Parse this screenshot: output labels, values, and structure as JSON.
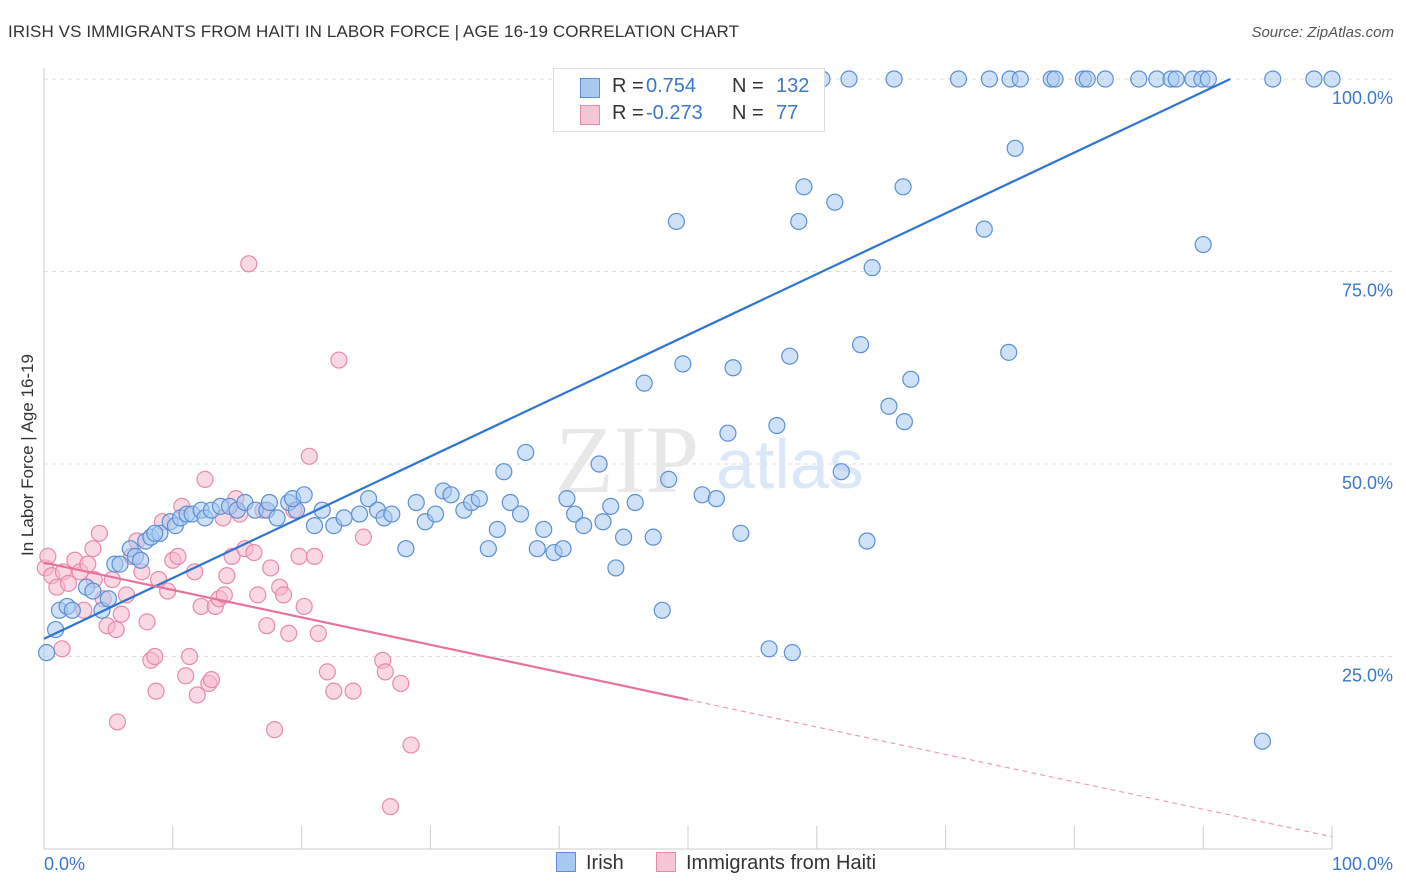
{
  "title": "IRISH VS IMMIGRANTS FROM HAITI IN LABOR FORCE | AGE 16-19 CORRELATION CHART",
  "source": "Source: ZipAtlas.com",
  "watermark": {
    "zip": "ZIP",
    "atlas": "atlas"
  },
  "legend": {
    "irish": {
      "r_label": "R =",
      "r_value": "0.754",
      "n_label": "N =",
      "n_value": "132"
    },
    "haiti": {
      "r_label": "R =",
      "r_value": "-0.273",
      "n_label": "N =",
      "n_value": "77"
    }
  },
  "colors": {
    "irish_fill": "#a8c8f0",
    "irish_stroke": "#5b8fd4",
    "irish_line": "#2e74d0",
    "haiti_fill": "#f5b8cc",
    "haiti_stroke": "#e88aa8",
    "haiti_line": "#e8739a",
    "value_text": "#3a78c9",
    "grid": "#dddddd"
  },
  "chart_data": {
    "type": "scatter",
    "ylabel": "In Labor Force | Age 16-19",
    "xlim": [
      0,
      100
    ],
    "ylim": [
      0,
      100
    ],
    "x_tick_labels": {
      "min": "0.0%",
      "max": "100.0%"
    },
    "y_tick_labels": [
      "25.0%",
      "50.0%",
      "75.0%",
      "100.0%"
    ],
    "y_ticks": [
      25,
      50,
      75,
      100
    ],
    "series": [
      {
        "name": "Irish",
        "r": 0.754,
        "n": 132,
        "trend": {
          "x0": 0,
          "y0": 27.3,
          "x1": 92.1,
          "y1": 100
        },
        "points": [
          [
            0.2,
            25.5
          ],
          [
            0.9,
            28.5
          ],
          [
            1.2,
            31
          ],
          [
            1.8,
            31.5
          ],
          [
            2.2,
            31
          ],
          [
            3.3,
            34
          ],
          [
            3.8,
            33.5
          ],
          [
            4.5,
            31
          ],
          [
            5.0,
            32.5
          ],
          [
            5.5,
            37
          ],
          [
            5.9,
            37
          ],
          [
            6.7,
            39
          ],
          [
            7.1,
            38
          ],
          [
            7.5,
            37.5
          ],
          [
            7.9,
            40
          ],
          [
            8.3,
            40.5
          ],
          [
            9.0,
            41
          ],
          [
            8.6,
            41
          ],
          [
            9.8,
            42.5
          ],
          [
            10.2,
            42
          ],
          [
            10.6,
            43
          ],
          [
            11.1,
            43.5
          ],
          [
            11.5,
            43.5
          ],
          [
            12.2,
            44
          ],
          [
            12.5,
            43
          ],
          [
            13.0,
            44
          ],
          [
            13.7,
            44.5
          ],
          [
            14.4,
            44.5
          ],
          [
            15.0,
            44
          ],
          [
            15.6,
            45
          ],
          [
            16.4,
            44
          ],
          [
            17.3,
            44
          ],
          [
            17.5,
            45
          ],
          [
            18.1,
            43
          ],
          [
            19.0,
            45
          ],
          [
            19.6,
            44
          ],
          [
            19.3,
            45.5
          ],
          [
            20.2,
            46
          ],
          [
            21.0,
            42
          ],
          [
            21.6,
            44
          ],
          [
            22.5,
            42
          ],
          [
            23.3,
            43
          ],
          [
            24.5,
            43.5
          ],
          [
            25.2,
            45.5
          ],
          [
            25.9,
            44
          ],
          [
            26.4,
            43
          ],
          [
            27.0,
            43.5
          ],
          [
            28.1,
            39
          ],
          [
            28.9,
            45
          ],
          [
            29.6,
            42.5
          ],
          [
            30.4,
            43.5
          ],
          [
            31.0,
            46.5
          ],
          [
            31.6,
            46
          ],
          [
            32.6,
            44
          ],
          [
            33.2,
            45
          ],
          [
            33.8,
            45.5
          ],
          [
            34.5,
            39
          ],
          [
            35.2,
            41.5
          ],
          [
            35.7,
            49
          ],
          [
            36.2,
            45
          ],
          [
            37.0,
            43.5
          ],
          [
            37.4,
            51.5
          ],
          [
            38.3,
            39
          ],
          [
            38.8,
            41.5
          ],
          [
            39.6,
            38.5
          ],
          [
            40.3,
            39
          ],
          [
            40.6,
            45.5
          ],
          [
            41.2,
            43.5
          ],
          [
            41.9,
            42
          ],
          [
            43.4,
            42.5
          ],
          [
            43.1,
            50
          ],
          [
            44.0,
            44.5
          ],
          [
            44.4,
            36.5
          ],
          [
            45.0,
            40.5
          ],
          [
            45.9,
            45
          ],
          [
            46.6,
            60.5
          ],
          [
            47.3,
            40.5
          ],
          [
            48.0,
            31
          ],
          [
            48.5,
            48
          ],
          [
            49.1,
            81.5
          ],
          [
            49.6,
            63
          ],
          [
            50.1,
            100
          ],
          [
            51.1,
            46
          ],
          [
            52.2,
            45.5
          ],
          [
            52.7,
            94.5
          ],
          [
            53.1,
            54
          ],
          [
            53.5,
            62.5
          ],
          [
            54.1,
            41
          ],
          [
            56.3,
            26
          ],
          [
            56.9,
            55
          ],
          [
            56.3,
            100
          ],
          [
            57.9,
            64
          ],
          [
            58.1,
            25.5
          ],
          [
            58.6,
            81.5
          ],
          [
            59.0,
            86
          ],
          [
            59.0,
            100
          ],
          [
            60.4,
            100
          ],
          [
            61.4,
            84
          ],
          [
            61.9,
            49
          ],
          [
            62.5,
            100
          ],
          [
            63.4,
            65.5
          ],
          [
            63.9,
            40
          ],
          [
            64.3,
            75.5
          ],
          [
            65.6,
            57.5
          ],
          [
            66.0,
            100
          ],
          [
            66.7,
            86
          ],
          [
            66.8,
            55.5
          ],
          [
            67.3,
            61
          ],
          [
            71.0,
            100
          ],
          [
            73.4,
            100
          ],
          [
            73.0,
            80.5
          ],
          [
            74.9,
            64.5
          ],
          [
            75.0,
            100
          ],
          [
            75.8,
            100
          ],
          [
            75.4,
            91
          ],
          [
            78.2,
            100
          ],
          [
            78.5,
            100
          ],
          [
            80.7,
            100
          ],
          [
            81.0,
            100
          ],
          [
            82.4,
            100
          ],
          [
            85.0,
            100
          ],
          [
            86.4,
            100
          ],
          [
            87.5,
            100
          ],
          [
            87.9,
            100
          ],
          [
            89.2,
            100
          ],
          [
            89.9,
            100
          ],
          [
            90.4,
            100
          ],
          [
            90.0,
            78.5
          ],
          [
            94.6,
            14
          ],
          [
            95.4,
            100
          ],
          [
            98.6,
            100
          ],
          [
            100.0,
            100
          ]
        ]
      },
      {
        "name": "Immigrants from Haiti",
        "r": -0.273,
        "n": 77,
        "trend": {
          "x0": 0,
          "y0": 37.2,
          "x1": 50,
          "y1": 19.4,
          "dash_to": {
            "x": 100,
            "y": 1.6
          }
        },
        "points": [
          [
            0.1,
            36.5
          ],
          [
            0.3,
            38
          ],
          [
            0.6,
            35.5
          ],
          [
            1.0,
            34
          ],
          [
            1.5,
            36
          ],
          [
            1.9,
            34.5
          ],
          [
            1.4,
            26
          ],
          [
            2.4,
            37.5
          ],
          [
            2.8,
            36
          ],
          [
            3.1,
            31
          ],
          [
            3.4,
            37
          ],
          [
            3.8,
            39
          ],
          [
            4.3,
            41
          ],
          [
            4.6,
            32.5
          ],
          [
            4.9,
            29
          ],
          [
            5.3,
            35
          ],
          [
            5.6,
            28.5
          ],
          [
            6.0,
            30.5
          ],
          [
            6.4,
            33
          ],
          [
            6.8,
            38
          ],
          [
            7.2,
            40
          ],
          [
            7.6,
            36
          ],
          [
            8.0,
            29.5
          ],
          [
            8.3,
            24.5
          ],
          [
            8.6,
            25
          ],
          [
            8.9,
            35
          ],
          [
            9.2,
            42.5
          ],
          [
            9.6,
            33.5
          ],
          [
            10.0,
            37.5
          ],
          [
            10.4,
            38
          ],
          [
            10.7,
            44.5
          ],
          [
            11.0,
            22.5
          ],
          [
            11.3,
            25
          ],
          [
            11.7,
            36
          ],
          [
            11.9,
            20
          ],
          [
            12.2,
            31.5
          ],
          [
            12.5,
            48
          ],
          [
            12.8,
            21.5
          ],
          [
            13.0,
            22
          ],
          [
            13.3,
            31.5
          ],
          [
            13.6,
            32.5
          ],
          [
            13.9,
            43
          ],
          [
            14.2,
            35.5
          ],
          [
            14.6,
            38
          ],
          [
            14.9,
            45.5
          ],
          [
            15.2,
            43.5
          ],
          [
            15.6,
            39
          ],
          [
            15.9,
            76
          ],
          [
            16.3,
            38.5
          ],
          [
            16.6,
            33
          ],
          [
            17.0,
            44
          ],
          [
            17.3,
            29
          ],
          [
            17.6,
            36.5
          ],
          [
            17.9,
            15.5
          ],
          [
            18.3,
            34
          ],
          [
            18.6,
            33
          ],
          [
            19.0,
            28
          ],
          [
            19.4,
            44
          ],
          [
            19.8,
            38
          ],
          [
            20.2,
            31.5
          ],
          [
            20.6,
            51
          ],
          [
            21.0,
            38
          ],
          [
            21.3,
            28
          ],
          [
            22.0,
            23
          ],
          [
            22.5,
            20.5
          ],
          [
            22.9,
            63.5
          ],
          [
            24.0,
            20.5
          ],
          [
            24.8,
            40.5
          ],
          [
            26.3,
            24.5
          ],
          [
            26.5,
            23
          ],
          [
            26.9,
            5.5
          ],
          [
            27.7,
            21.5
          ],
          [
            28.5,
            13.5
          ],
          [
            8.7,
            20.5
          ],
          [
            5.7,
            16.5
          ],
          [
            14.0,
            33
          ],
          [
            3.9,
            35
          ]
        ]
      }
    ]
  }
}
